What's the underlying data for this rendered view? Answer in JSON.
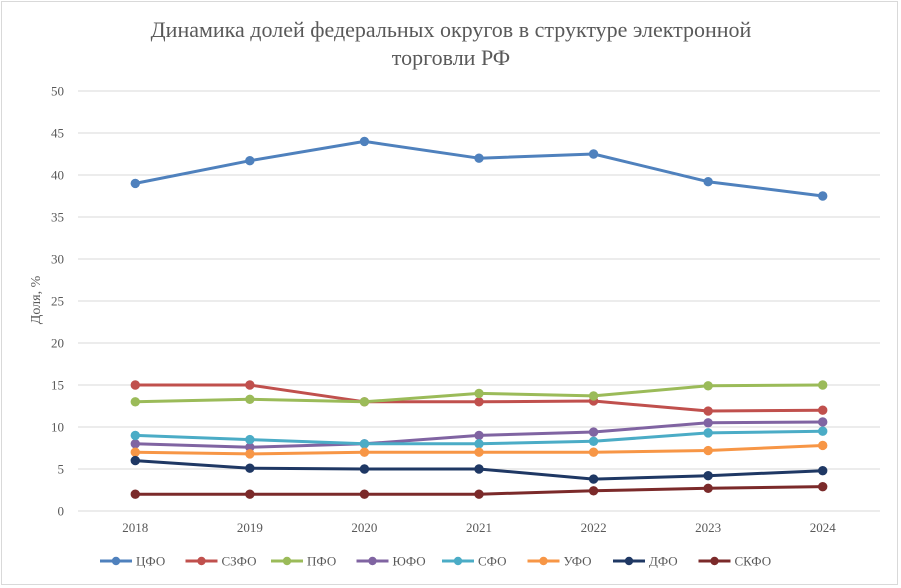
{
  "chart_data": {
    "type": "line",
    "title_line1": "Динамика долей федеральных округов  в структуре  электронной",
    "title_line2": "торговли РФ",
    "xlabel": "",
    "ylabel": "Доля, %",
    "ylim": [
      0,
      50
    ],
    "yticks": [
      "0",
      "5",
      "10",
      "15",
      "20",
      "25",
      "30",
      "35",
      "40",
      "45",
      "50"
    ],
    "categories": [
      "2018",
      "2019",
      "2020",
      "2021",
      "2022",
      "2023",
      "2024"
    ],
    "grid": true,
    "legend_position": "bottom",
    "series": [
      {
        "name": "ЦФО",
        "color": "#4f81bd",
        "values": [
          39.0,
          41.7,
          44.0,
          42.0,
          42.5,
          39.2,
          37.5
        ]
      },
      {
        "name": "СЗФО",
        "color": "#c0504d",
        "values": [
          15.0,
          15.0,
          13.0,
          13.0,
          13.1,
          11.9,
          12.0
        ]
      },
      {
        "name": "ПФО",
        "color": "#9bbb59",
        "values": [
          13.0,
          13.3,
          13.0,
          14.0,
          13.7,
          14.9,
          15.0
        ]
      },
      {
        "name": "ЮФО",
        "color": "#8064a2",
        "values": [
          8.0,
          7.6,
          8.0,
          9.0,
          9.4,
          10.5,
          10.6
        ]
      },
      {
        "name": "СФО",
        "color": "#4bacc6",
        "values": [
          9.0,
          8.5,
          8.0,
          8.0,
          8.3,
          9.3,
          9.5
        ]
      },
      {
        "name": "УФО",
        "color": "#f79646",
        "values": [
          7.0,
          6.8,
          7.0,
          7.0,
          7.0,
          7.2,
          7.8
        ]
      },
      {
        "name": "ДФО",
        "color": "#1f3864",
        "values": [
          6.0,
          5.1,
          5.0,
          5.0,
          3.8,
          4.2,
          4.8
        ]
      },
      {
        "name": "СКФО",
        "color": "#7b2a2a",
        "values": [
          2.0,
          2.0,
          2.0,
          2.0,
          2.4,
          2.7,
          2.9
        ]
      }
    ]
  }
}
